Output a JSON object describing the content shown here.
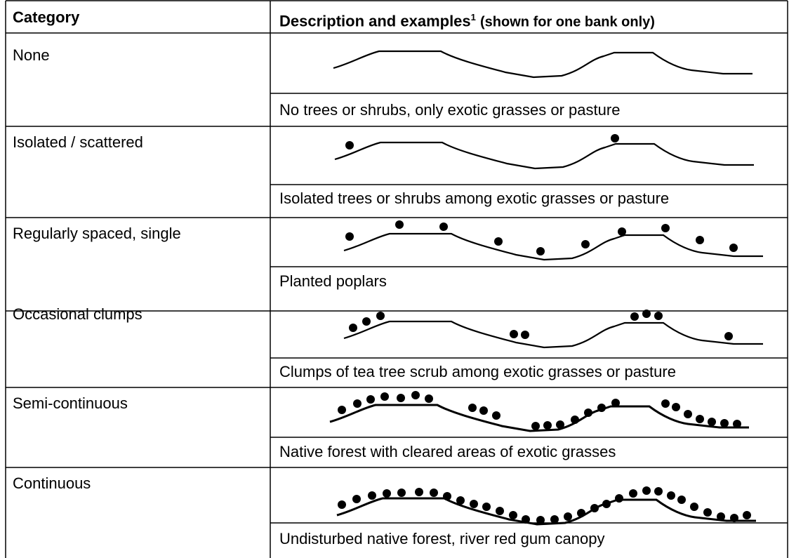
{
  "header": {
    "category": "Category",
    "description": "Description and examples",
    "footnote_mark": "1",
    "note": "(shown for one bank only)"
  },
  "rows": [
    {
      "category": "None",
      "description": "No trees or shrubs, only exotic grasses or pasture"
    },
    {
      "category": "Isolated / scattered",
      "description": "Isolated trees or shrubs among exotic grasses or pasture"
    },
    {
      "category": "Regularly spaced, single",
      "description": "Planted poplars"
    },
    {
      "category": "Occasional clumps",
      "description": "Clumps of tea tree scrub among exotic grasses or pasture"
    },
    {
      "category": "Semi-continuous",
      "description": "Native forest with cleared areas of exotic grasses"
    },
    {
      "category": "Continuous",
      "description": "Undisturbed native forest, river red gum canopy"
    }
  ]
}
